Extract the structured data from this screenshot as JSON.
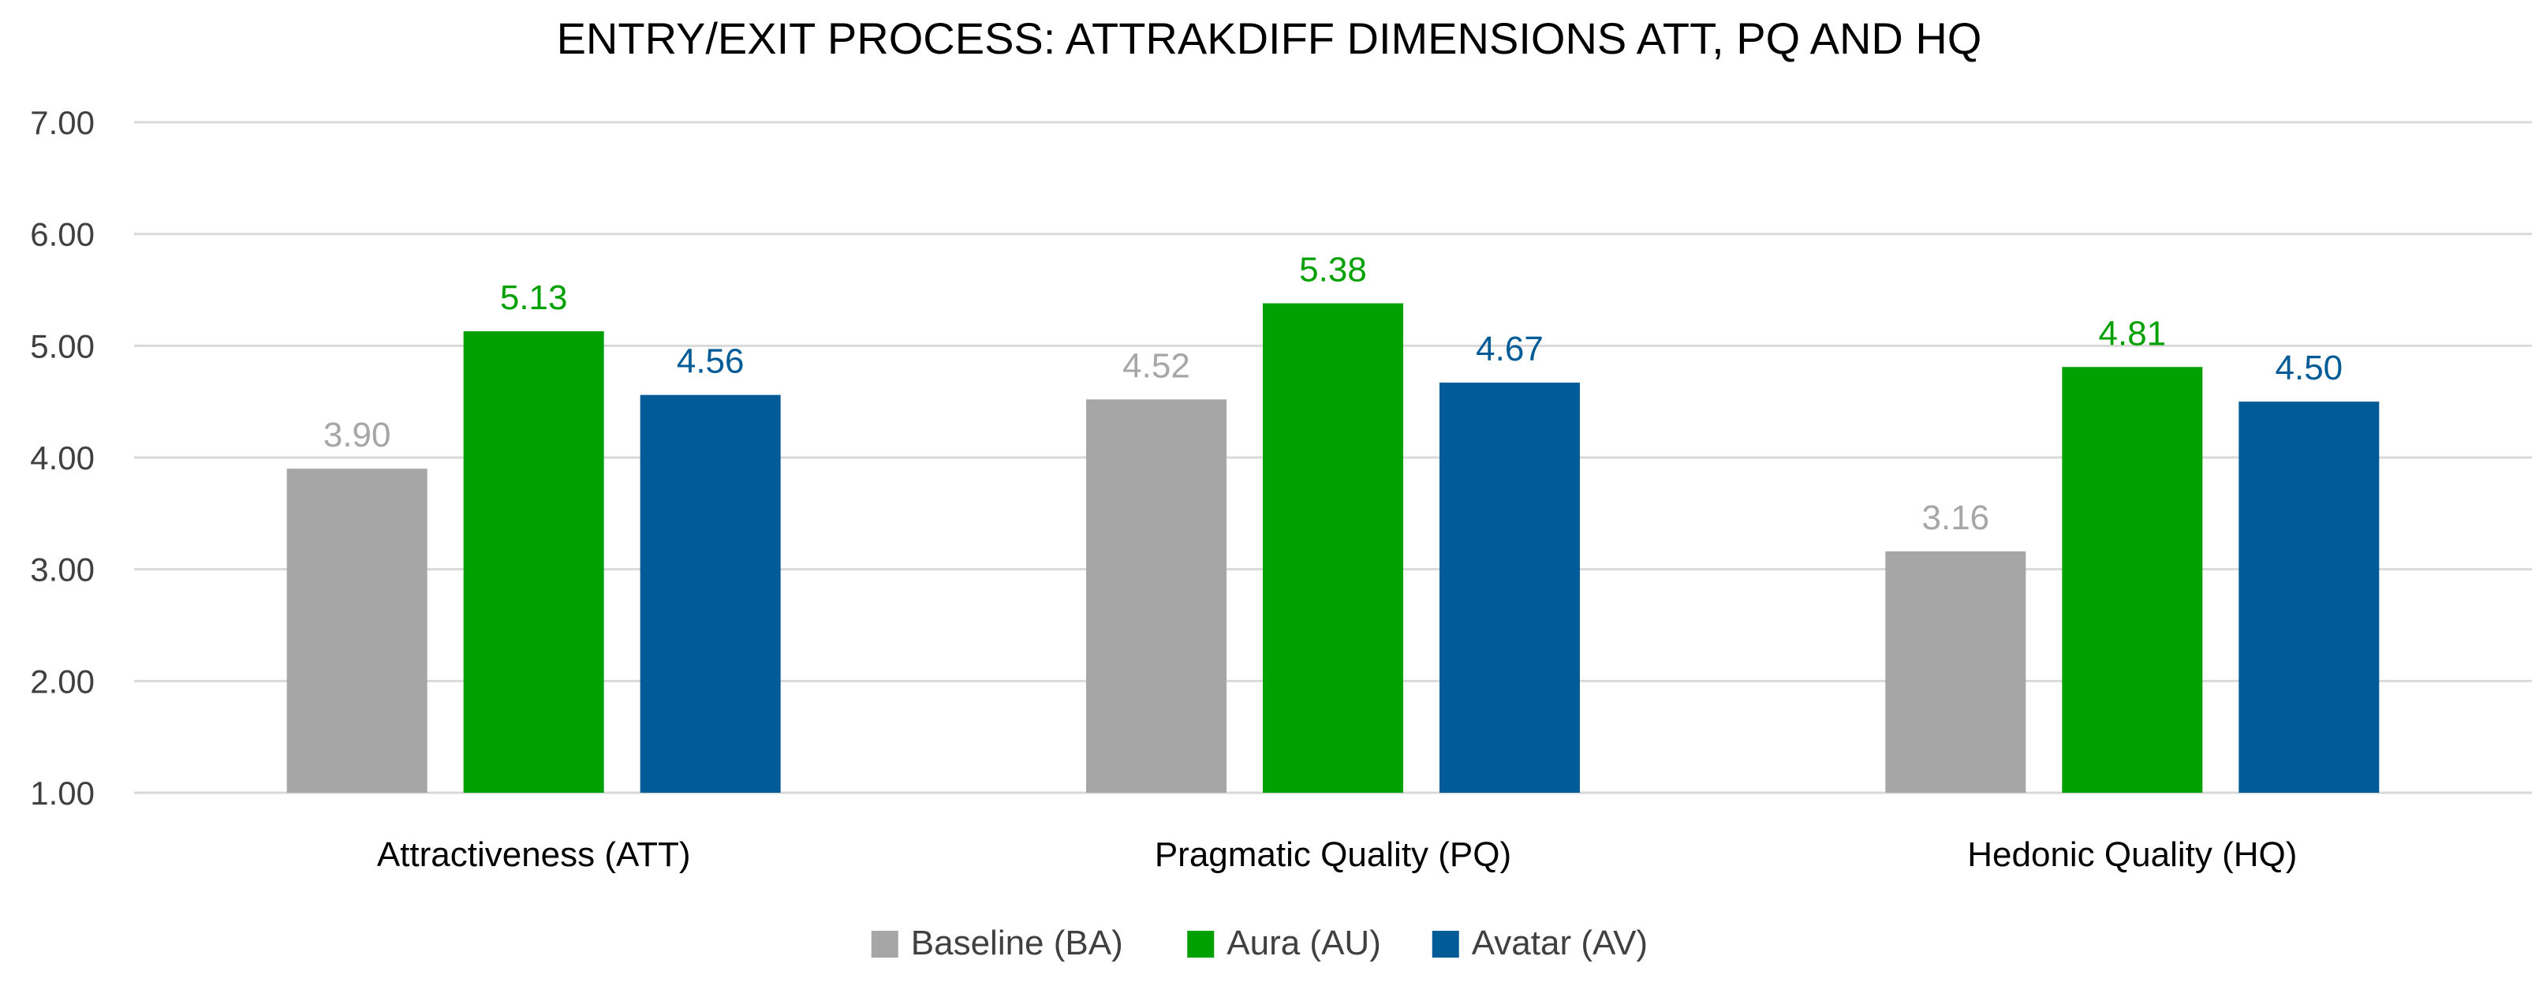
{
  "chart_data": {
    "type": "bar",
    "title": "ENTRY/EXIT PROCESS: ATTRAKDIFF DIMENSIONS ATT, PQ AND HQ",
    "xlabel": "",
    "ylabel": "",
    "ylim": [
      1,
      7
    ],
    "yticks": [
      1,
      2,
      3,
      4,
      5,
      6,
      7
    ],
    "ytick_labels": [
      "1.00",
      "2.00",
      "3.00",
      "4.00",
      "5.00",
      "6.00",
      "7.00"
    ],
    "grid": true,
    "legend_position": "bottom",
    "categories": [
      "Attractiveness (ATT)",
      "Pragmatic Quality (PQ)",
      "Hedonic Quality (HQ)"
    ],
    "series": [
      {
        "name": "Baseline (BA)",
        "color": "#a6a6a6",
        "values": [
          3.9,
          4.52,
          3.16
        ],
        "labels": [
          "3.90",
          "4.52",
          "3.16"
        ]
      },
      {
        "name": "Aura (AU)",
        "color": "#00a000",
        "values": [
          5.13,
          5.38,
          4.81
        ],
        "labels": [
          "5.13",
          "5.38",
          "4.81"
        ]
      },
      {
        "name": "Avatar (AV)",
        "color": "#005b96",
        "values": [
          4.56,
          4.67,
          4.5
        ],
        "labels": [
          "4.56",
          "4.67",
          "4.50"
        ]
      }
    ]
  }
}
